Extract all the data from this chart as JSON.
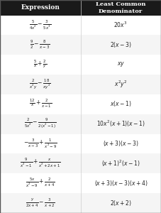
{
  "title_col1": "Expression",
  "title_col2": "Least Common\nDenominator",
  "header_bg": "#1a1a1a",
  "header_fg": "#ffffff",
  "row_bg_odd": "#ffffff",
  "row_bg_even": "#f5f5f5",
  "border_color": "#cccccc",
  "expressions": [
    "$\\frac{5}{4x^2} - \\frac{3}{5x^3}$",
    "$\\frac{9}{2} - \\frac{8}{x-3}$",
    "$\\frac{5}{x} + \\frac{2}{y}$",
    "$\\frac{2}{x^2y} - \\frac{18}{xy^2}$",
    "$\\frac{12}{x} + \\frac{2}{x-1}$",
    "$\\frac{2}{5x^2} - \\frac{9}{2(x^2-1)}$",
    "$-\\frac{3}{x-3} + \\frac{1}{x^2-9}$",
    "$\\frac{9}{x^2-1} + \\frac{x}{x^2+2x+1}$",
    "$\\frac{5x}{x^2-9} + \\frac{2}{x+4}$",
    "$\\frac{y}{2x+4} - \\frac{3}{x+2}$"
  ],
  "lcds": [
    "$20x^3$",
    "$2(x-3)$",
    "$xy$",
    "$x^2y^2$",
    "$x(x-1)$",
    "$10x^2(x+1)(x-1)$",
    "$(x+3)(x-3)$",
    "$(x+1)^2(x-1)$",
    "$(x+3)(x-3)(x+4)$",
    "$2(x+2)$"
  ],
  "figsize": [
    2.27,
    3.0
  ],
  "dpi": 100
}
